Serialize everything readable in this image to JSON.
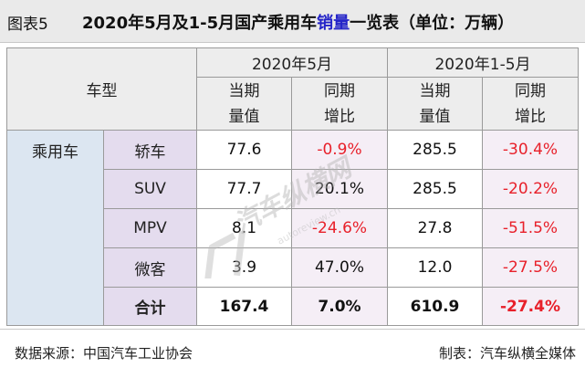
{
  "title": {
    "figure_no": "图表5",
    "pre": "2020年5月及1-5月国产乘用车",
    "highlight": "销量",
    "post": "一览表（单位：万辆）"
  },
  "header": {
    "model_label": "车型",
    "period_month": "2020年5月",
    "period_ytd": "2020年1-5月",
    "current_line1": "当期",
    "current_line2": "量值",
    "yoy_line1": "同期",
    "yoy_line2": "增比"
  },
  "group_label": "乘用车",
  "rows": [
    {
      "type": "轿车",
      "m_val": "77.6",
      "m_yoy": "-0.9%",
      "ytd_val": "285.5",
      "ytd_yoy": "-30.4%"
    },
    {
      "type": "SUV",
      "m_val": "77.7",
      "m_yoy": "20.1%",
      "ytd_val": "285.5",
      "ytd_yoy": "-20.2%"
    },
    {
      "type": "MPV",
      "m_val": "8.1",
      "m_yoy": "-24.6%",
      "ytd_val": "27.8",
      "ytd_yoy": "-51.5%"
    },
    {
      "type": "微客",
      "m_val": "3.9",
      "m_yoy": "47.0%",
      "ytd_val": "12.0",
      "ytd_yoy": "-27.5%"
    }
  ],
  "total": {
    "type": "合计",
    "m_val": "167.4",
    "m_yoy": "7.0%",
    "ytd_val": "610.9",
    "ytd_yoy": "-27.4%"
  },
  "footer": {
    "source": "数据来源：中国汽车工业协会",
    "maker": "制表：汽车纵横全媒体"
  },
  "watermark": {
    "text": "汽车纵横网",
    "sub": "autoreview.cn"
  },
  "colors": {
    "negative": "#e8202a",
    "title_highlight": "#2323c8",
    "group_bg": "#dce6f1",
    "category_bg": "#e4dcee",
    "pct_bg": "#f5eef6"
  }
}
